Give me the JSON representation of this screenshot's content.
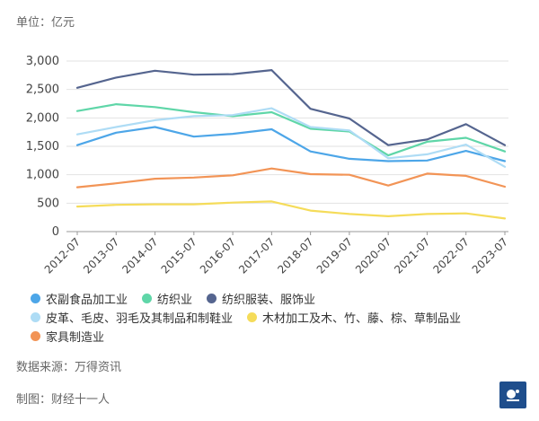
{
  "unit_label": "单位：亿元",
  "source_label": "数据来源：万得资讯",
  "author_label": "制图：财经十一人",
  "chart_data": {
    "type": "line",
    "title": "",
    "xlabel": "",
    "ylabel": "亿元",
    "ylim": [
      0,
      3000
    ],
    "yticks": [
      0,
      500,
      1000,
      1500,
      2000,
      2500,
      3000
    ],
    "ytick_labels": [
      "0",
      "500",
      "1,000",
      "1,500",
      "2,000",
      "2,500",
      "3,000"
    ],
    "categories": [
      "2012-07",
      "2013-07",
      "2014-07",
      "2015-07",
      "2016-07",
      "2017-07",
      "2018-07",
      "2019-07",
      "2020-07",
      "2021-07",
      "2022-07",
      "2023-07"
    ],
    "legend_position": "bottom",
    "series": [
      {
        "name": "农副食品加工业",
        "color": "#4da6e8",
        "values": [
          1520,
          1740,
          1840,
          1670,
          1720,
          1800,
          1410,
          1280,
          1240,
          1250,
          1420,
          1240
        ]
      },
      {
        "name": "纺织业",
        "color": "#5fd6a8",
        "values": [
          2120,
          2240,
          2190,
          2100,
          2030,
          2100,
          1810,
          1760,
          1340,
          1580,
          1650,
          1410
        ]
      },
      {
        "name": "纺织服装、服饰业",
        "color": "#55658f",
        "values": [
          2530,
          2710,
          2830,
          2760,
          2770,
          2840,
          2160,
          1990,
          1520,
          1620,
          1890,
          1520
        ]
      },
      {
        "name": "皮革、毛皮、羽毛及其制品和制鞋业",
        "color": "#aedcf5",
        "values": [
          1710,
          1840,
          1960,
          2030,
          2050,
          2170,
          1840,
          1780,
          1290,
          1360,
          1530,
          1140
        ]
      },
      {
        "name": "木材加工及木、竹、藤、棕、草制品业",
        "color": "#f5dc5a",
        "values": [
          440,
          470,
          480,
          480,
          510,
          530,
          370,
          310,
          270,
          310,
          320,
          230
        ]
      },
      {
        "name": "家具制造业",
        "color": "#f29456",
        "values": [
          780,
          850,
          930,
          950,
          990,
          1110,
          1010,
          1000,
          810,
          1020,
          980,
          790
        ]
      }
    ]
  },
  "legend_rows": [
    [
      0,
      1,
      2
    ],
    [
      3,
      4
    ],
    [
      5
    ]
  ]
}
